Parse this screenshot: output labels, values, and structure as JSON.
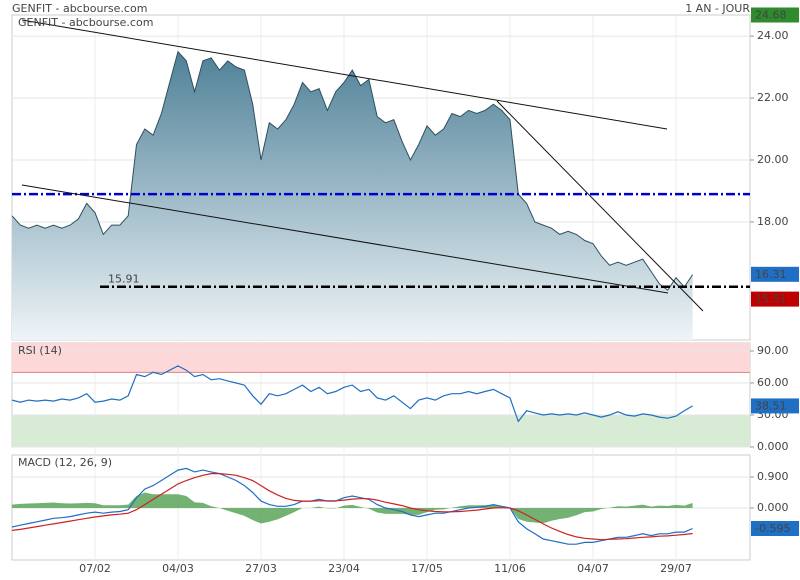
{
  "chart_data": [
    {
      "type": "area",
      "title": "GENFIT - abcbourse.com",
      "subtitle": "1 AN - JOUR",
      "categories": [
        null,
        null,
        null,
        null,
        null,
        null,
        null,
        null,
        null,
        null,
        "07/02",
        null,
        null,
        null,
        null,
        null,
        null,
        null,
        null,
        null,
        "04/03",
        null,
        null,
        null,
        null,
        null,
        null,
        null,
        null,
        null,
        "27/03",
        null,
        null,
        null,
        null,
        null,
        null,
        null,
        null,
        null,
        "23/04",
        null,
        null,
        null,
        null,
        null,
        null,
        null,
        null,
        null,
        "17/05",
        null,
        null,
        null,
        null,
        null,
        null,
        null,
        null,
        null,
        "11/06",
        null,
        null,
        null,
        null,
        null,
        null,
        null,
        null,
        null,
        "04/07",
        null,
        null,
        null,
        null,
        null,
        null,
        null,
        null,
        null,
        "29/07",
        null,
        null
      ],
      "values": [
        18.2,
        17.9,
        17.8,
        17.9,
        17.8,
        17.9,
        17.8,
        17.9,
        18.1,
        18.6,
        18.3,
        17.6,
        17.9,
        17.9,
        18.2,
        20.5,
        21.0,
        20.8,
        21.5,
        22.5,
        23.5,
        23.2,
        22.2,
        23.2,
        23.3,
        22.9,
        23.2,
        23.0,
        22.9,
        21.8,
        20.0,
        21.2,
        21.0,
        21.3,
        21.8,
        22.5,
        22.2,
        22.3,
        21.6,
        22.2,
        22.5,
        22.9,
        22.4,
        22.6,
        21.4,
        21.2,
        21.3,
        20.6,
        20.0,
        20.5,
        21.1,
        20.8,
        21.0,
        21.5,
        21.4,
        21.6,
        21.5,
        21.6,
        21.8,
        21.6,
        21.3,
        18.9,
        18.6,
        18.0,
        17.9,
        17.8,
        17.6,
        17.7,
        17.6,
        17.4,
        17.3,
        16.9,
        16.6,
        16.7,
        16.6,
        16.7,
        16.8,
        16.4,
        16.0,
        15.8,
        16.2,
        15.9,
        16.3
      ],
      "color": "#2f4f5f",
      "ylim": [
        14.19,
        24.68
      ],
      "yticks": [
        {
          "value": 18,
          "label": "18.00"
        },
        {
          "value": 20,
          "label": "20.00"
        },
        {
          "value": 22,
          "label": "22.00"
        },
        {
          "value": 24,
          "label": "24.00"
        }
      ],
      "grid": true,
      "lines": [
        {
          "value": 18.9,
          "color": "#0000cc",
          "labeled": false
        },
        {
          "value": 15.91,
          "color": "#000000",
          "labeled": true
        }
      ],
      "markers": [
        {
          "value": 24.68,
          "color": "#2e8b2e"
        },
        {
          "value": 16.31,
          "color": "#1f6fc4"
        },
        {
          "value": 15.51,
          "color": "#c00000"
        }
      ]
    },
    {
      "type": "line",
      "title": "RSI (14)",
      "series": [
        {
          "color": "#1f6fc4",
          "values": [
            44,
            42,
            44,
            43,
            44,
            43,
            45,
            44,
            46,
            50,
            42,
            43,
            45,
            44,
            48,
            68,
            66,
            70,
            68,
            72,
            76,
            72,
            66,
            68,
            63,
            64,
            62,
            60,
            58,
            48,
            40,
            50,
            48,
            50,
            54,
            58,
            52,
            56,
            50,
            52,
            56,
            58,
            52,
            54,
            46,
            44,
            48,
            42,
            36,
            44,
            46,
            44,
            48,
            50,
            50,
            52,
            50,
            52,
            54,
            50,
            46,
            24,
            34,
            32,
            30,
            31,
            30,
            31,
            30,
            32,
            30,
            28,
            30,
            33,
            30,
            29,
            31,
            30,
            28,
            27,
            29,
            34,
            38.51
          ]
        }
      ],
      "ylim": [
        0,
        97.5
      ],
      "yticks": [
        {
          "value": 90,
          "label": "90.00"
        },
        {
          "value": 60,
          "label": "60.00"
        },
        {
          "value": 30,
          "label": "30.00"
        },
        {
          "value": 0,
          "label": "0.000"
        }
      ],
      "grid": true,
      "zones": [
        {
          "from": 70,
          "to": 97.5,
          "color": "#fdd8d8",
          "edge": "#e08080"
        },
        {
          "from": 0,
          "to": 30,
          "color": "#d8ebd4",
          "edge": "#70a070"
        }
      ],
      "markers": [
        {
          "value": 38.51,
          "color": "#1f6fc4"
        }
      ]
    },
    {
      "type": "line",
      "title": "MACD (12, 26, 9)",
      "series": [
        {
          "style": "area",
          "color": "#5aa55a",
          "values": [
            0.1,
            0.12,
            0.13,
            0.14,
            0.15,
            0.16,
            0.14,
            0.13,
            0.14,
            0.15,
            0.14,
            0.08,
            0.08,
            0.08,
            0.1,
            0.35,
            0.45,
            0.4,
            0.4,
            0.4,
            0.4,
            0.35,
            0.17,
            0.15,
            0.05,
            0.0,
            -0.08,
            -0.15,
            -0.23,
            -0.35,
            -0.45,
            -0.4,
            -0.33,
            -0.23,
            -0.12,
            0.0,
            0.0,
            0.04,
            -0.01,
            -0.01,
            0.07,
            0.09,
            0.03,
            -0.02,
            -0.13,
            -0.17,
            -0.17,
            -0.17,
            -0.2,
            -0.2,
            -0.12,
            -0.05,
            -0.04,
            0.01,
            0.05,
            0.08,
            0.08,
            0.08,
            0.1,
            0.04,
            0.0,
            -0.32,
            -0.4,
            -0.42,
            -0.44,
            -0.37,
            -0.32,
            -0.28,
            -0.21,
            -0.12,
            -0.1,
            -0.03,
            0.01,
            0.05,
            0.04,
            0.07,
            0.1,
            0.04,
            0.07,
            0.06,
            0.09,
            0.07,
            0.145
          ]
        },
        {
          "color": "#1f6fc4",
          "values": [
            -0.55,
            -0.5,
            -0.45,
            -0.4,
            -0.35,
            -0.3,
            -0.28,
            -0.25,
            -0.2,
            -0.15,
            -0.12,
            -0.15,
            -0.12,
            -0.1,
            -0.05,
            0.3,
            0.55,
            0.65,
            0.8,
            0.95,
            1.1,
            1.15,
            1.05,
            1.1,
            1.05,
            1.0,
            0.9,
            0.8,
            0.65,
            0.45,
            0.2,
            0.1,
            0.05,
            0.05,
            0.1,
            0.2,
            0.2,
            0.25,
            0.2,
            0.2,
            0.3,
            0.35,
            0.3,
            0.25,
            0.1,
            0.0,
            -0.05,
            -0.1,
            -0.2,
            -0.25,
            -0.2,
            -0.15,
            -0.15,
            -0.1,
            -0.05,
            0.0,
            0.02,
            0.05,
            0.1,
            0.05,
            0.0,
            -0.4,
            -0.6,
            -0.75,
            -0.9,
            -0.95,
            -1.0,
            -1.05,
            -1.05,
            -1.0,
            -1.0,
            -0.95,
            -0.9,
            -0.85,
            -0.85,
            -0.8,
            -0.75,
            -0.8,
            -0.75,
            -0.75,
            -0.7,
            -0.7,
            -0.595
          ]
        },
        {
          "color": "#cc2222",
          "values": [
            -0.65,
            -0.62,
            -0.58,
            -0.54,
            -0.5,
            -0.46,
            -0.42,
            -0.38,
            -0.34,
            -0.3,
            -0.26,
            -0.23,
            -0.2,
            -0.18,
            -0.15,
            -0.05,
            0.1,
            0.25,
            0.4,
            0.55,
            0.7,
            0.8,
            0.88,
            0.95,
            1.0,
            1.0,
            0.98,
            0.95,
            0.88,
            0.8,
            0.65,
            0.5,
            0.38,
            0.28,
            0.22,
            0.2,
            0.2,
            0.21,
            0.21,
            0.21,
            0.23,
            0.26,
            0.27,
            0.27,
            0.23,
            0.17,
            0.12,
            0.07,
            0.0,
            -0.05,
            -0.08,
            -0.1,
            -0.11,
            -0.11,
            -0.1,
            -0.08,
            -0.06,
            -0.03,
            0.0,
            0.01,
            0.0,
            -0.08,
            -0.2,
            -0.33,
            -0.46,
            -0.58,
            -0.68,
            -0.77,
            -0.84,
            -0.88,
            -0.9,
            -0.92,
            -0.91,
            -0.9,
            -0.89,
            -0.87,
            -0.85,
            -0.84,
            -0.82,
            -0.81,
            -0.79,
            -0.77,
            -0.74
          ]
        }
      ],
      "ylim": [
        -1.51,
        1.54
      ],
      "yticks": [
        {
          "value": 0.9,
          "label": "0.900"
        },
        {
          "value": 0,
          "label": "0.000"
        }
      ],
      "grid": true,
      "markers": [
        {
          "value": -0.595,
          "color": "#1f6fc4"
        }
      ]
    }
  ]
}
